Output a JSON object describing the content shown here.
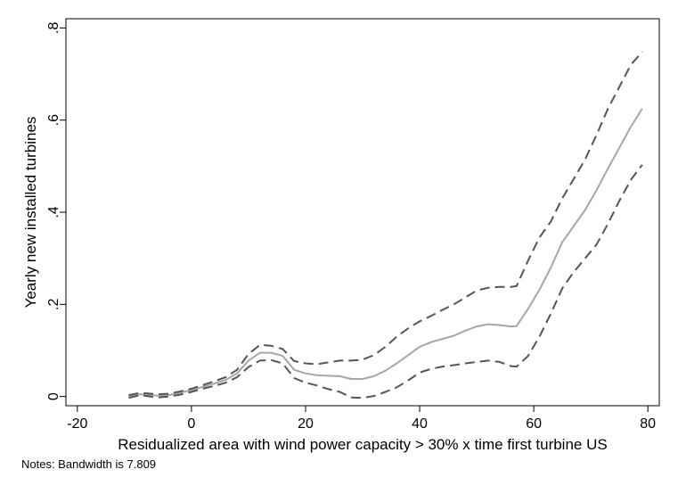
{
  "chart_data": {
    "type": "line",
    "xlabel": "Residualized area with wind power capacity > 30% x time first turbine US",
    "ylabel": "Yearly new installed turbines",
    "xlim": [
      -22,
      82
    ],
    "ylim": [
      -0.02,
      0.82
    ],
    "x_ticks": [
      -20,
      0,
      20,
      40,
      60,
      80
    ],
    "x_tick_labels": [
      "-20",
      "0",
      "20",
      "40",
      "60",
      "80"
    ],
    "y_ticks": [
      0,
      0.2,
      0.4,
      0.6,
      0.8
    ],
    "y_tick_labels": [
      "0",
      ".2",
      ".4",
      ".6",
      ".8"
    ],
    "grid": false,
    "series": [
      {
        "role": "estimate",
        "style": "solid",
        "color": "#a6a6a6",
        "x": [
          -11,
          -9,
          -6,
          -4,
          -2,
          0,
          2,
          4,
          6,
          8,
          10,
          12,
          14,
          16,
          18,
          20,
          22,
          24,
          26,
          28,
          30,
          32,
          34,
          36,
          38,
          40,
          42,
          44,
          46,
          48,
          50,
          52,
          54,
          56,
          57,
          59,
          61,
          63,
          65,
          67,
          69,
          71,
          73,
          75,
          77,
          79
        ],
        "y": [
          0.0,
          0.005,
          0.002,
          0.003,
          0.008,
          0.014,
          0.021,
          0.028,
          0.036,
          0.05,
          0.078,
          0.095,
          0.095,
          0.088,
          0.058,
          0.05,
          0.046,
          0.045,
          0.044,
          0.038,
          0.038,
          0.044,
          0.056,
          0.072,
          0.09,
          0.108,
          0.118,
          0.125,
          0.132,
          0.143,
          0.152,
          0.157,
          0.155,
          0.152,
          0.153,
          0.19,
          0.232,
          0.28,
          0.335,
          0.37,
          0.405,
          0.448,
          0.495,
          0.54,
          0.585,
          0.625
        ]
      },
      {
        "role": "upper-ci",
        "style": "dashed",
        "color": "#555555",
        "x": [
          -11,
          -9,
          -6,
          -4,
          -2,
          0,
          2,
          4,
          6,
          8,
          10,
          12,
          14,
          16,
          18,
          20,
          22,
          24,
          26,
          28,
          30,
          32,
          34,
          36,
          38,
          40,
          42,
          44,
          46,
          48,
          50,
          52,
          54,
          56,
          57,
          59,
          61,
          63,
          65,
          67,
          69,
          71,
          73,
          75,
          77,
          79
        ],
        "y": [
          0.003,
          0.008,
          0.005,
          0.006,
          0.011,
          0.017,
          0.025,
          0.033,
          0.042,
          0.058,
          0.092,
          0.112,
          0.11,
          0.103,
          0.077,
          0.072,
          0.07,
          0.074,
          0.078,
          0.078,
          0.08,
          0.09,
          0.108,
          0.13,
          0.148,
          0.163,
          0.175,
          0.188,
          0.2,
          0.215,
          0.23,
          0.236,
          0.238,
          0.238,
          0.24,
          0.295,
          0.345,
          0.38,
          0.43,
          0.472,
          0.515,
          0.568,
          0.625,
          0.672,
          0.72,
          0.748
        ]
      },
      {
        "role": "lower-ci",
        "style": "dashed",
        "color": "#555555",
        "x": [
          -11,
          -9,
          -6,
          -4,
          -2,
          0,
          2,
          4,
          6,
          8,
          10,
          12,
          14,
          16,
          18,
          20,
          22,
          24,
          26,
          28,
          30,
          32,
          34,
          36,
          38,
          40,
          42,
          44,
          46,
          48,
          50,
          52,
          54,
          56,
          57,
          59,
          61,
          63,
          65,
          67,
          69,
          71,
          73,
          75,
          77,
          79
        ],
        "y": [
          -0.003,
          0.003,
          -0.002,
          0.0,
          0.004,
          0.01,
          0.017,
          0.023,
          0.03,
          0.042,
          0.064,
          0.078,
          0.079,
          0.072,
          0.04,
          0.03,
          0.024,
          0.016,
          0.01,
          -0.002,
          -0.003,
          0.001,
          0.01,
          0.02,
          0.035,
          0.052,
          0.06,
          0.065,
          0.068,
          0.072,
          0.075,
          0.078,
          0.075,
          0.066,
          0.065,
          0.088,
          0.13,
          0.18,
          0.235,
          0.27,
          0.3,
          0.33,
          0.375,
          0.425,
          0.47,
          0.503
        ]
      }
    ]
  },
  "notes": "Notes: Bandwidth is 7.809"
}
